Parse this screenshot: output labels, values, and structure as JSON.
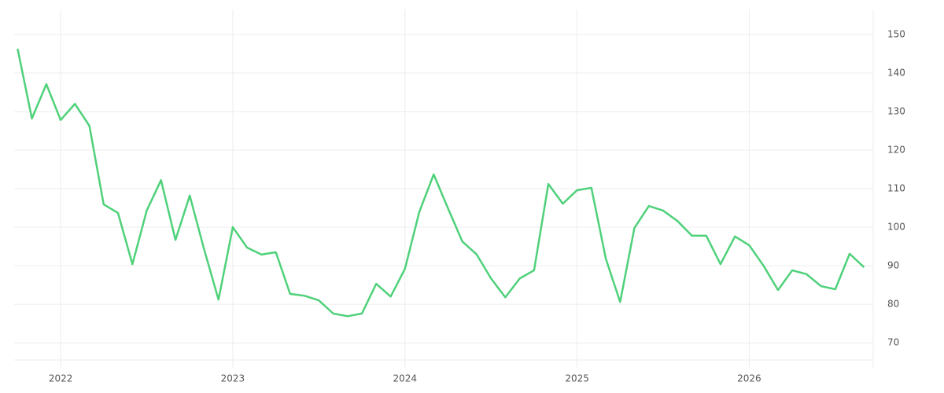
{
  "chart_data": {
    "type": "line",
    "x": [
      2021.75,
      2021.833,
      2021.917,
      2022,
      2022.083,
      2022.167,
      2022.25,
      2022.333,
      2022.417,
      2022.5,
      2022.583,
      2022.667,
      2022.75,
      2022.833,
      2022.917,
      2023,
      2023.083,
      2023.167,
      2023.25,
      2023.333,
      2023.417,
      2023.5,
      2023.583,
      2023.667,
      2023.75,
      2023.833,
      2023.917,
      2024,
      2024.083,
      2024.167,
      2024.25,
      2024.333,
      2024.417,
      2024.5,
      2024.583,
      2024.667,
      2024.75,
      2024.833,
      2024.917,
      2025,
      2025.083,
      2025.167,
      2025.25,
      2025.333,
      2025.417,
      2025.5,
      2025.583,
      2025.667,
      2025.75,
      2025.833,
      2025.917,
      2026,
      2026.083,
      2026.167,
      2026.25,
      2026.333,
      2026.417,
      2026.5,
      2026.583,
      2026.667
    ],
    "series": [
      {
        "color": "#4fd17a",
        "values": [
          146.3,
          128.2,
          137.1,
          127.8,
          132.0,
          126.3,
          105.9,
          103.7,
          90.4,
          104.3,
          112.2,
          96.7,
          108.2,
          94.3,
          81.2,
          100.0,
          94.7,
          92.9,
          93.5,
          82.7,
          82.2,
          81.0,
          77.6,
          76.9,
          77.6,
          85.3,
          82.0,
          89.2,
          103.9,
          113.7,
          104.9,
          96.3,
          92.9,
          86.7,
          81.8,
          86.7,
          88.8,
          111.2,
          106.1,
          109.6,
          110.2,
          91.8,
          80.6,
          99.8,
          105.5,
          104.3,
          101.6,
          97.8,
          97.8,
          90.4,
          97.6,
          95.3,
          90.0,
          83.7,
          88.8,
          87.8,
          84.7,
          83.9,
          93.1,
          89.6
        ]
      }
    ],
    "xlim": [
      2021.73,
      2026.72
    ],
    "xticks": [
      2022,
      2023,
      2024,
      2025,
      2026
    ],
    "ylim": [
      63.5,
      156.5
    ],
    "yticks": [
      70,
      80,
      90,
      100,
      110,
      120,
      130,
      140,
      150
    ],
    "grid": true
  }
}
